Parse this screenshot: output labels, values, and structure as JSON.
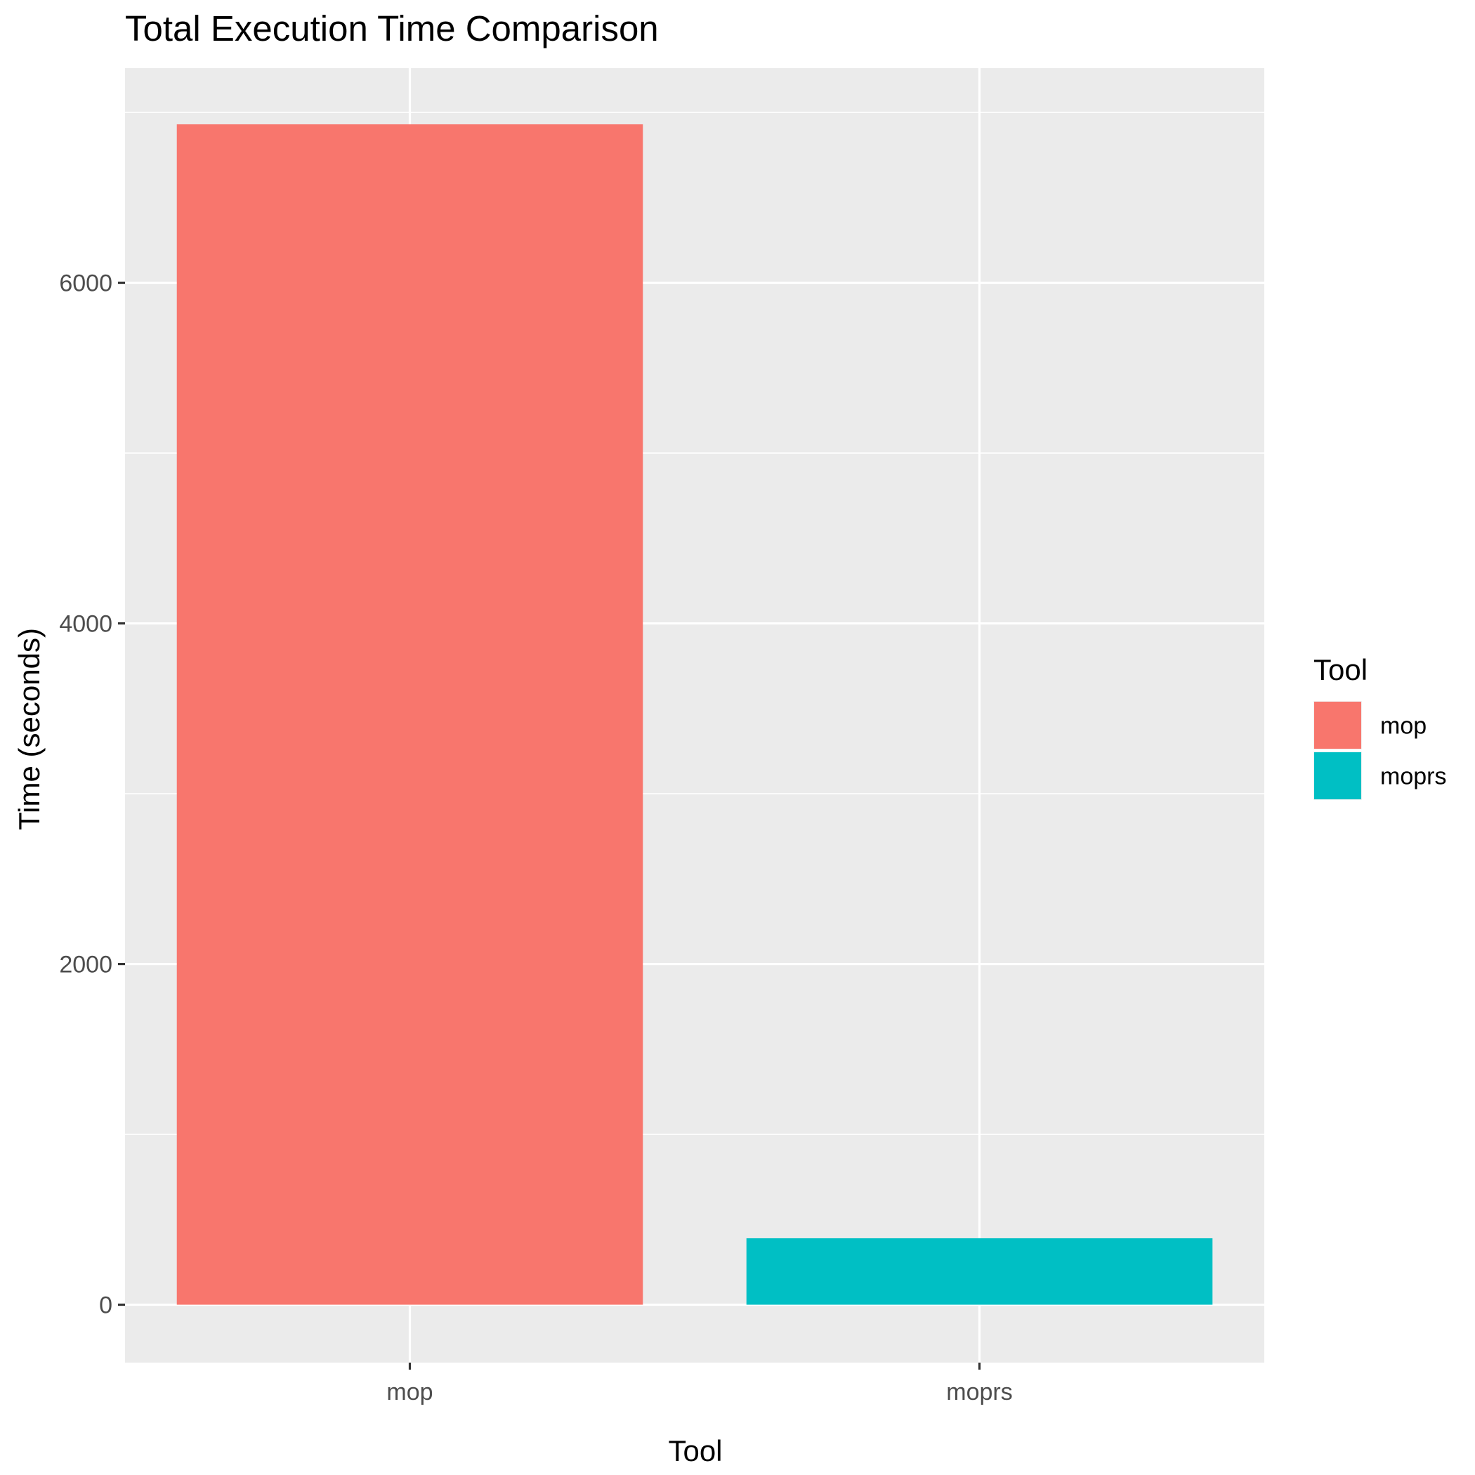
{
  "chart_data": {
    "type": "bar",
    "title": "Total Execution Time Comparison",
    "xlabel": "Tool",
    "ylabel": "Time (seconds)",
    "categories": [
      "mop",
      "moprs"
    ],
    "values": [
      6930,
      390
    ],
    "ylim": [
      -340,
      7260
    ],
    "y_ticks": [
      0,
      2000,
      4000,
      6000
    ],
    "y_tick_labels": [
      "0",
      "2000",
      "4000",
      "6000"
    ],
    "grid": true,
    "panel_background": "#ebebeb",
    "bar_colors": {
      "mop": "#f8766d",
      "moprs": "#00bfc4"
    },
    "legend": {
      "title": "Tool",
      "placement": "right",
      "entries": [
        {
          "label": "mop",
          "color": "#f8766d"
        },
        {
          "label": "moprs",
          "color": "#00bfc4"
        }
      ]
    }
  }
}
